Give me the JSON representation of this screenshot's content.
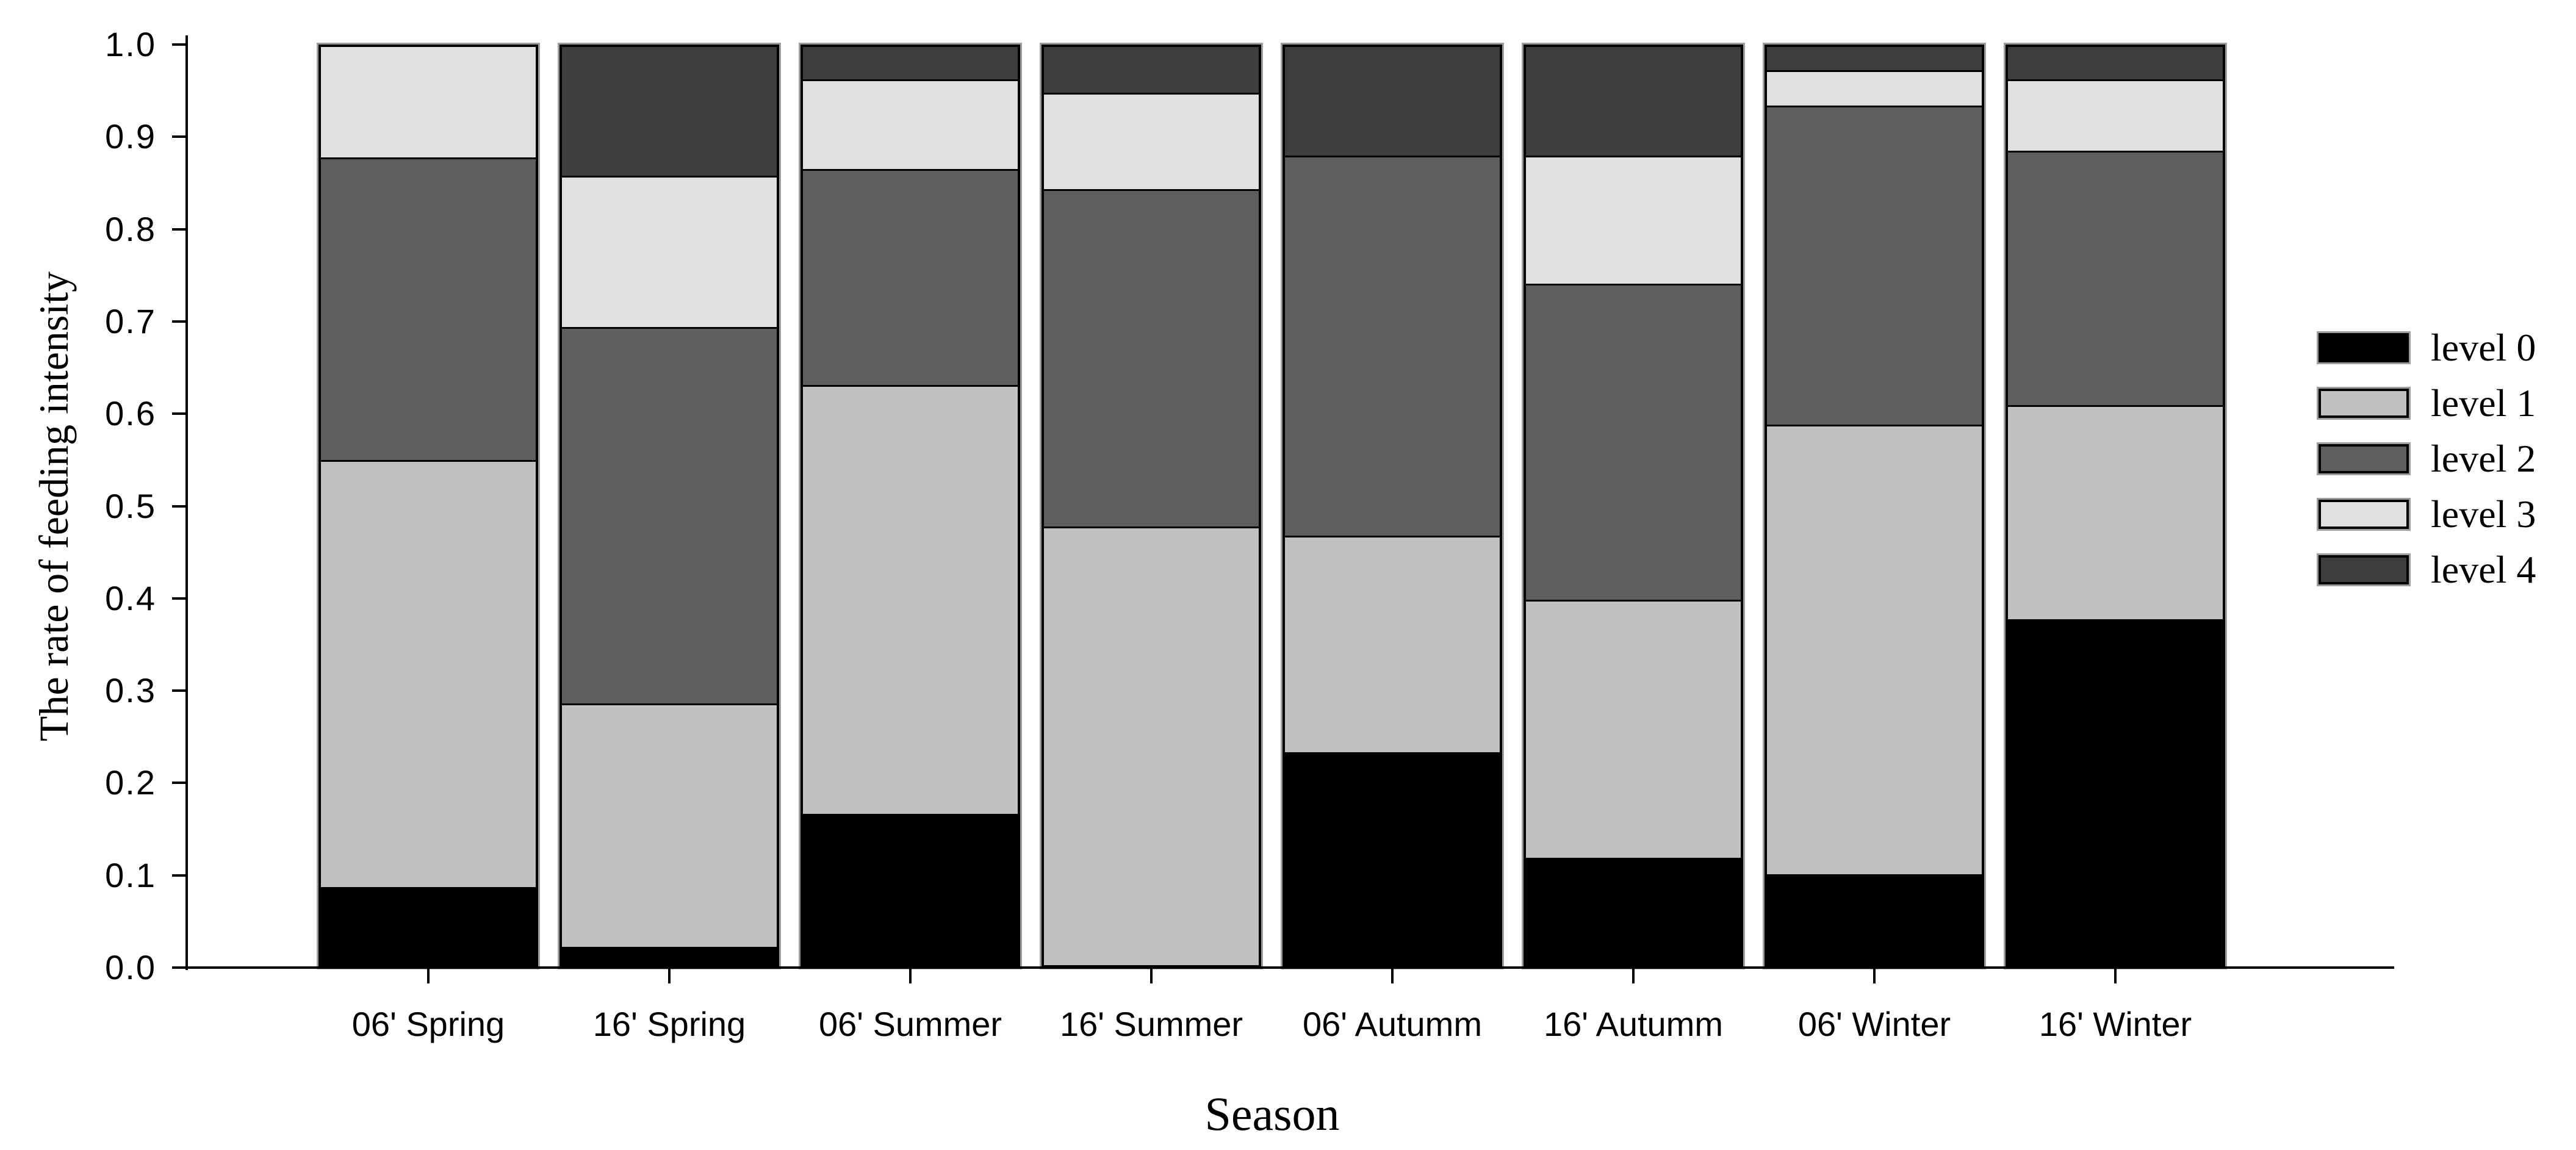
{
  "figure": {
    "y_axis_title": "The rate of feeding intensity",
    "x_axis_title": "Season"
  },
  "chart_data": {
    "type": "bar",
    "stacked": true,
    "title": "",
    "xlabel": "Season",
    "ylabel": "The rate of feeding intensity",
    "ylim": [
      0.0,
      1.0
    ],
    "ytick_step": 0.1,
    "ytick_labels": [
      "0.0",
      "0.1",
      "0.2",
      "0.3",
      "0.4",
      "0.5",
      "0.6",
      "0.7",
      "0.8",
      "0.9",
      "1.0"
    ],
    "grid": false,
    "legend_position": "right",
    "categories": [
      "06' Spring",
      "16' Spring",
      "06' Summer",
      "16' Summer",
      "06' Autumm",
      "16' Autumm",
      "06' Winter",
      "16' Winter"
    ],
    "series": [
      {
        "name": "level 0",
        "color": "#000000",
        "values": [
          0.085,
          0.02,
          0.165,
          0.0,
          0.232,
          0.117,
          0.099,
          0.377
        ]
      },
      {
        "name": "level 1",
        "color": "#c1c1c1",
        "values": [
          0.465,
          0.265,
          0.467,
          0.478,
          0.236,
          0.281,
          0.49,
          0.233
        ]
      },
      {
        "name": "level 2",
        "color": "#5e5e5e",
        "values": [
          0.33,
          0.41,
          0.235,
          0.367,
          0.414,
          0.344,
          0.347,
          0.277
        ]
      },
      {
        "name": "level 3",
        "color": "#e0e0e0",
        "values": [
          0.12,
          0.165,
          0.098,
          0.105,
          0.0,
          0.14,
          0.039,
          0.078
        ]
      },
      {
        "name": "level 4",
        "color": "#3d3d3d",
        "values": [
          0.0,
          0.14,
          0.035,
          0.05,
          0.118,
          0.118,
          0.025,
          0.035
        ]
      }
    ]
  }
}
